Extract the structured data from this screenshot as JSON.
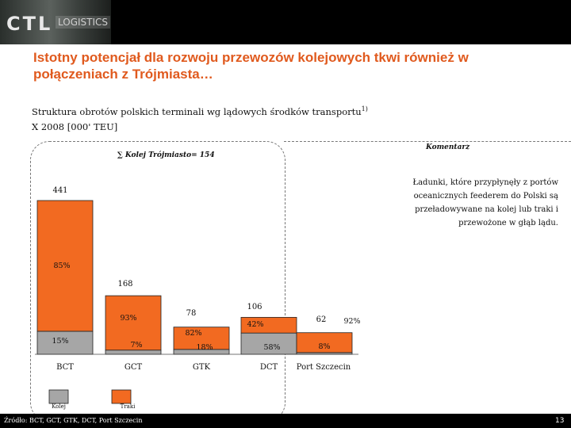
{
  "header": {
    "logo": "CTL",
    "logo_sub": "LOGISTICS"
  },
  "title": "Istotny potencjał dla rozwoju przewozów kolejowych tkwi również w połączeniach z Trójmiasta…",
  "subtitle_line1": "Struktura obrotów polskich terminali wg lądowych środków transportu",
  "subtitle_sup": "1)",
  "subtitle_line2": "X 2008 [000' TEU]",
  "sum_label": "∑ Kolej Trójmiasto= 154",
  "comment": {
    "heading": "Komentarz",
    "text": "Ładunki, które przypłynęły z portów oceanicznych feederem do Polski są przeładowywane na kolej lub traki i przewożone w głąb lądu."
  },
  "source": "Źródło: BCT, GCT, GTK, DCT, Port Szczecin",
  "page_number": "13",
  "colors": {
    "trucks": "#f26a21",
    "rail": "#a6a6a6",
    "accent": "#e05a1e"
  },
  "chart_data": {
    "type": "bar",
    "stacked": true,
    "categories": [
      "BCT",
      "GCT",
      "GTK",
      "DCT",
      "Port Szczecin"
    ],
    "totals": [
      441,
      168,
      78,
      106,
      62
    ],
    "total_labels": [
      "441",
      "168",
      "78",
      "106",
      "62"
    ],
    "series": [
      {
        "name": "Kolej",
        "values": [
          66,
          12,
          14,
          61,
          5
        ],
        "pct_labels": [
          "15%",
          "7%",
          "18%",
          "58%",
          "8%"
        ]
      },
      {
        "name": "Traki",
        "values": [
          375,
          156,
          64,
          45,
          57
        ],
        "pct_labels": [
          "85%",
          "93%",
          "82%",
          "42%",
          "92%"
        ]
      }
    ],
    "legend": [
      "Kolej",
      "Traki"
    ],
    "ylim": [
      0,
      441
    ]
  }
}
